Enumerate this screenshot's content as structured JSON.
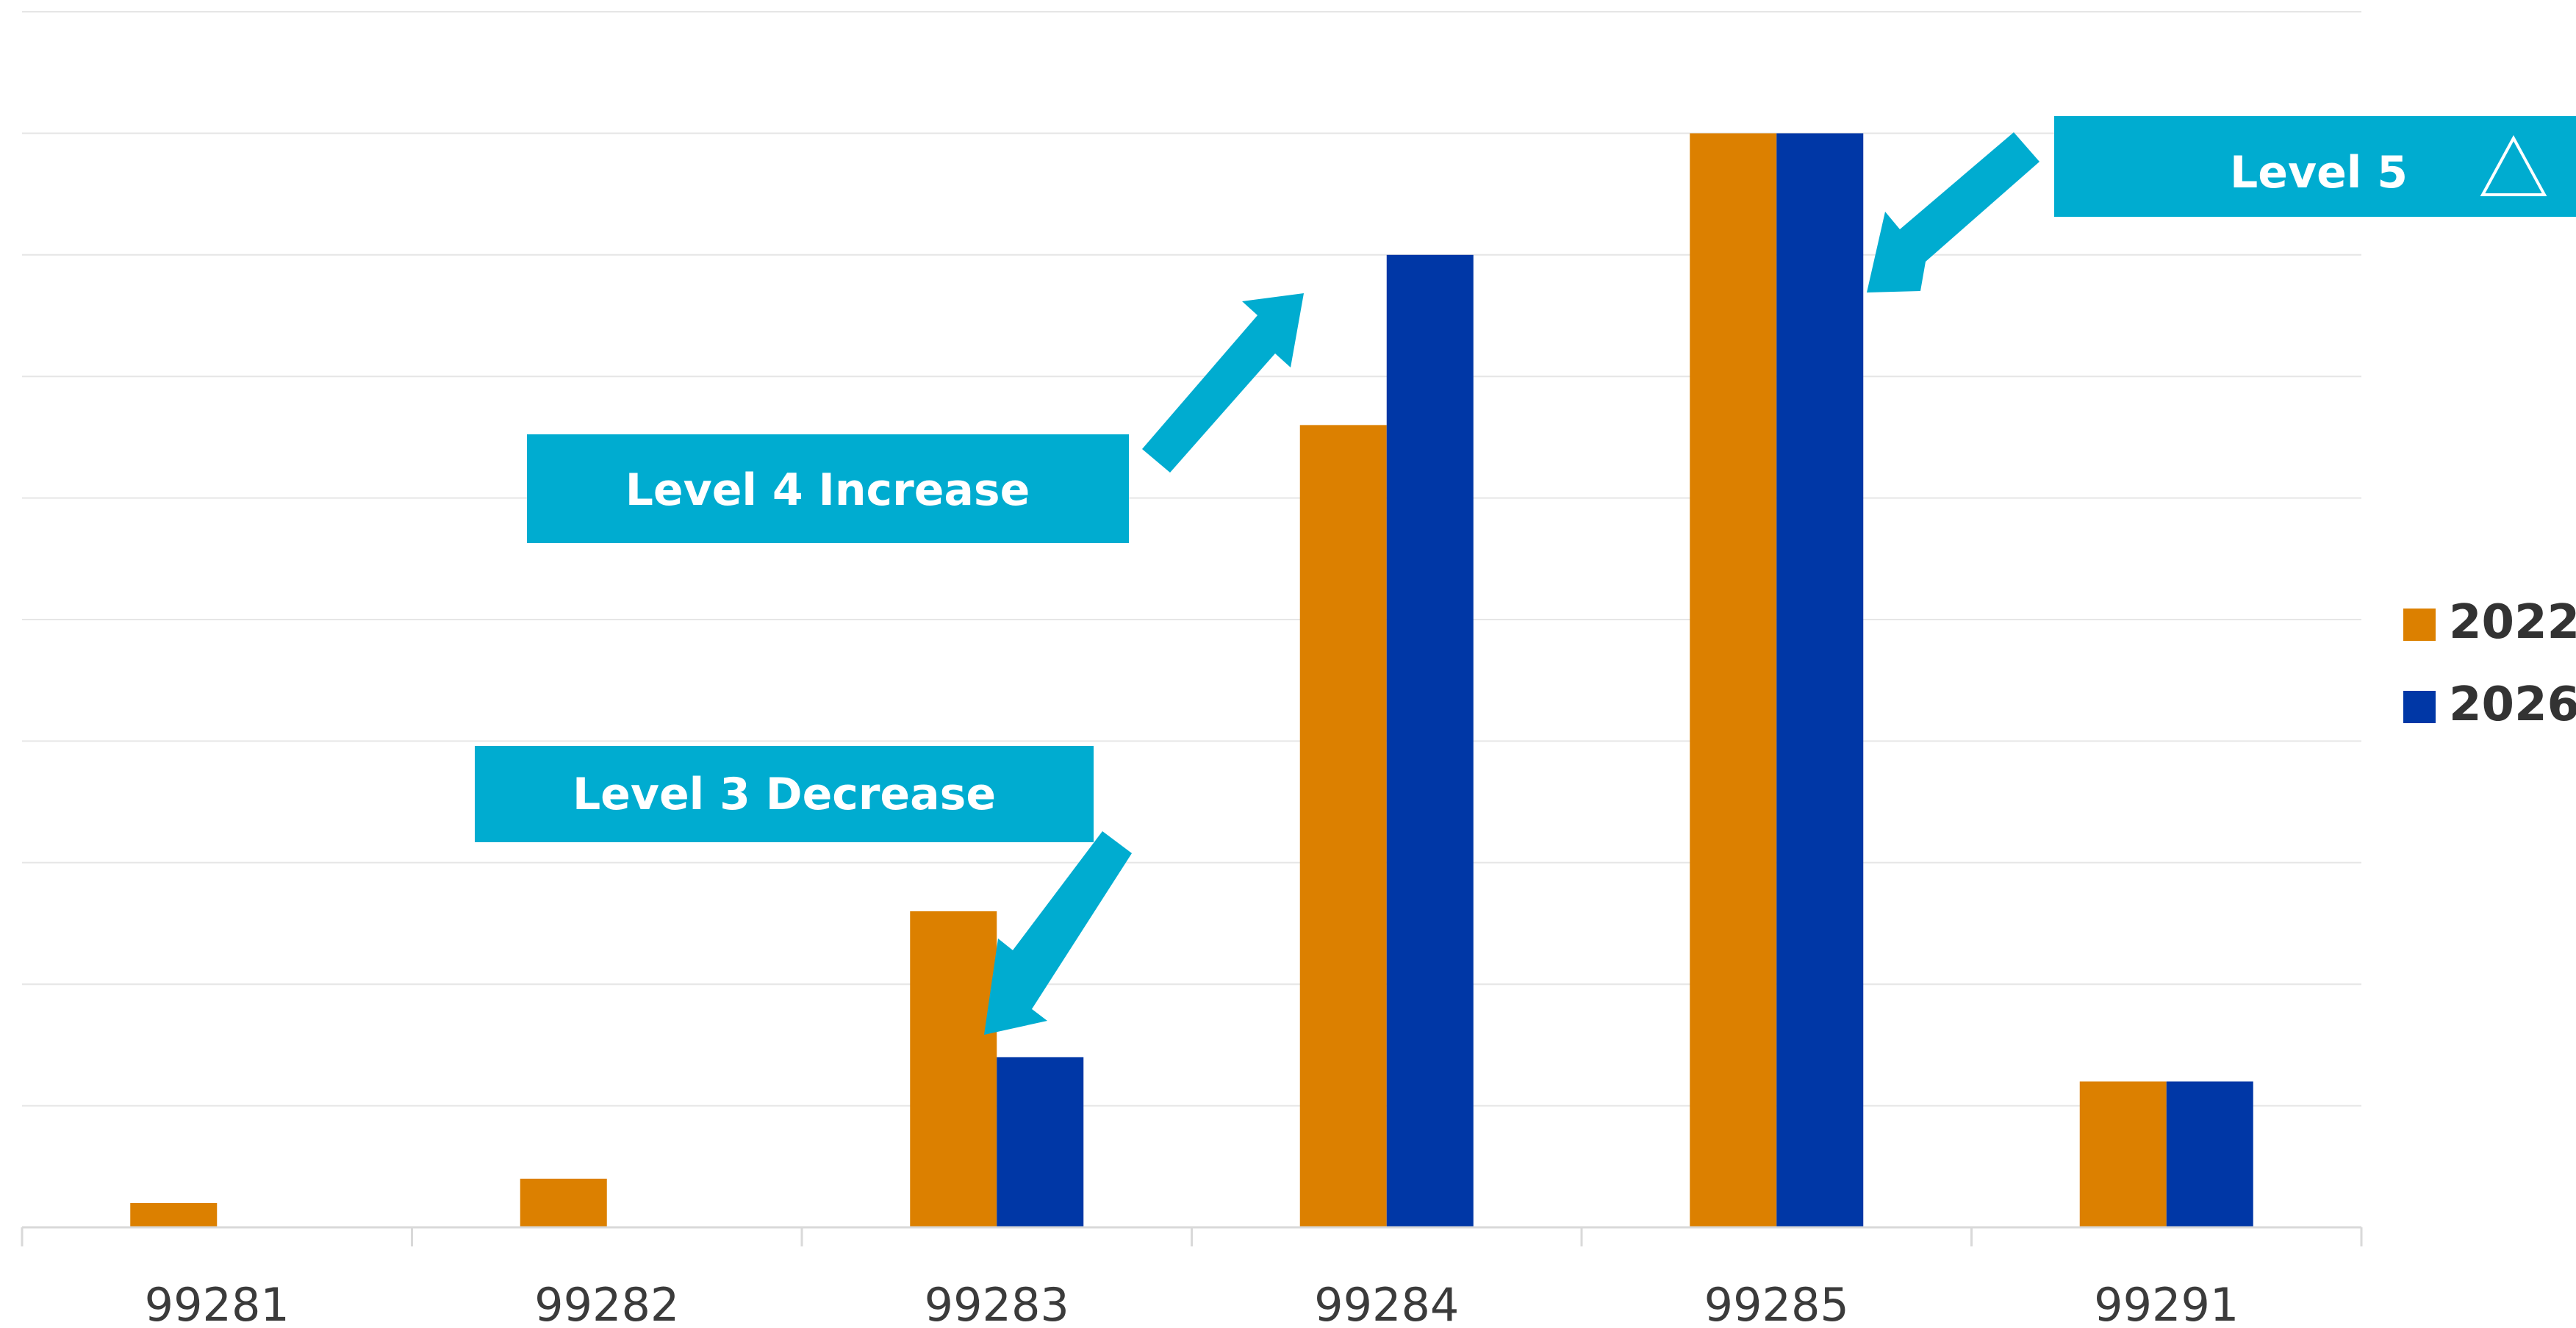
{
  "chart_data": {
    "type": "bar",
    "categories": [
      "99281",
      "99282",
      "99283",
      "99284",
      "99285",
      "99291"
    ],
    "series": [
      {
        "name": "2022",
        "color": "#DC8000",
        "values": [
          2,
          4,
          26,
          66,
          90,
          12
        ]
      },
      {
        "name": "2026",
        "color": "#0037A6",
        "values": [
          0,
          0,
          14,
          80,
          90,
          12
        ]
      }
    ],
    "ylim": [
      0,
      100
    ],
    "grid": true,
    "legend": "right",
    "annotations": [
      {
        "text": "Level 4 Increase"
      },
      {
        "text": "Level 3 Decrease"
      },
      {
        "text": "Level 5"
      }
    ],
    "accent_color": "#00ACD0"
  }
}
